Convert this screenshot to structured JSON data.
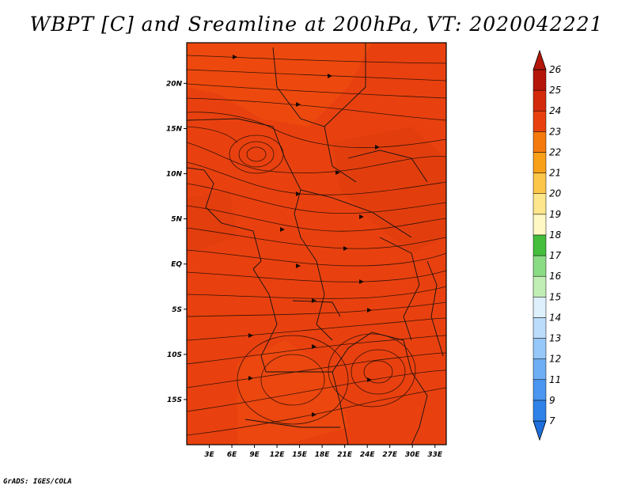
{
  "title": "WBPT [C] and Sreamline at 200hPa, VT: 2020042221",
  "footer": "GrADS: IGES/COLA",
  "map": {
    "lon_range": [
      0,
      34.5
    ],
    "lat_range": [
      -20,
      24.5
    ],
    "background_color": "#e8410f",
    "x_ticks": [
      "3E",
      "6E",
      "9E",
      "12E",
      "15E",
      "18E",
      "21E",
      "24E",
      "27E",
      "30E",
      "33E"
    ],
    "x_tick_values": [
      3,
      6,
      9,
      12,
      15,
      18,
      21,
      24,
      27,
      30,
      33
    ],
    "y_ticks": [
      "20N",
      "15N",
      "10N",
      "5N",
      "EQ",
      "5S",
      "10S",
      "15S"
    ],
    "y_tick_values": [
      20,
      15,
      10,
      5,
      0,
      -5,
      -10,
      -15
    ]
  },
  "colorbar": {
    "levels": [
      "7",
      "9",
      "11",
      "12",
      "13",
      "14",
      "15",
      "16",
      "17",
      "18",
      "19",
      "20",
      "21",
      "22",
      "23",
      "24",
      "25",
      "26"
    ],
    "colors": [
      "#1e6fdc",
      "#2e82e8",
      "#4a96f0",
      "#6eaef5",
      "#96c8fa",
      "#bcdcfb",
      "#dff0fd",
      "#c0eeb4",
      "#8adc84",
      "#44be3c",
      "#fff8c4",
      "#fde68c",
      "#fcc64a",
      "#f8a018",
      "#f57a0e",
      "#e8410f",
      "#d32a0c",
      "#b4170a"
    ]
  }
}
